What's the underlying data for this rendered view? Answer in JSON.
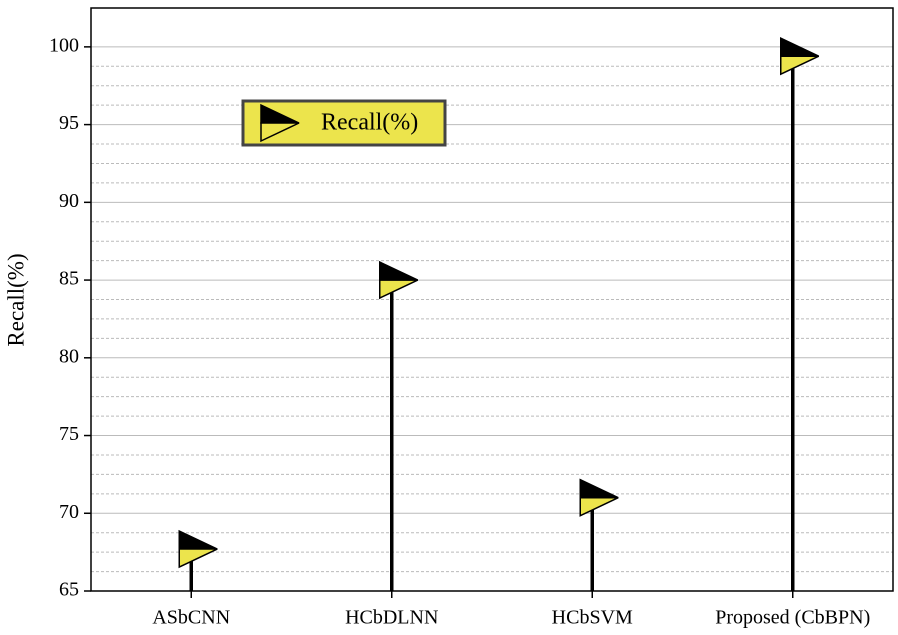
{
  "chart_data": {
    "type": "lollipop",
    "ylabel": "Recall(%)",
    "categories": [
      "ASbCNN",
      "HCbDLNN",
      "HCbSVM",
      "Proposed (CbBPN)"
    ],
    "series": [
      {
        "name": "Recall(%)",
        "color": "#ece44c",
        "values": [
          67.7,
          85.0,
          71.0,
          99.4
        ]
      }
    ],
    "ylim": [
      65,
      102.5
    ],
    "yticks": [
      65,
      70,
      75,
      80,
      85,
      90,
      95,
      100
    ],
    "grid": true,
    "legend": "upper left"
  }
}
